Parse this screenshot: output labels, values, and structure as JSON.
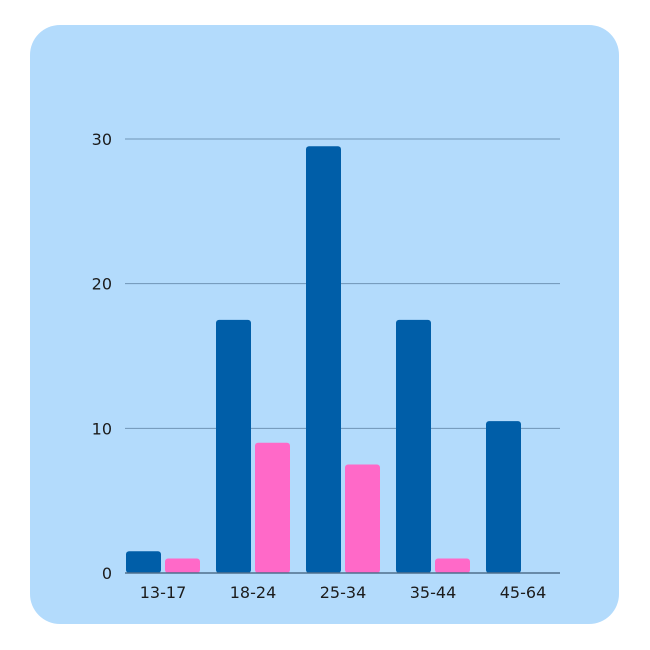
{
  "colors": {
    "background": "#b3dbfc",
    "gridline": "#6f94b6",
    "axis": "#4f6f8c",
    "series": [
      "#005ea8",
      "#ff69c8"
    ]
  },
  "chart_data": {
    "type": "bar",
    "title": "",
    "xlabel": "",
    "ylabel": "",
    "categories": [
      "13-17",
      "18-24",
      "25-34",
      "35-44",
      "45-64"
    ],
    "series": [
      {
        "values": [
          1.5,
          17.5,
          29.5,
          17.5,
          10.5
        ]
      },
      {
        "values": [
          1,
          9,
          7.5,
          1,
          0
        ]
      }
    ],
    "ylim": [
      0,
      30
    ],
    "yticks": [
      0,
      10,
      20,
      30
    ],
    "grid": true,
    "legend": "none"
  }
}
